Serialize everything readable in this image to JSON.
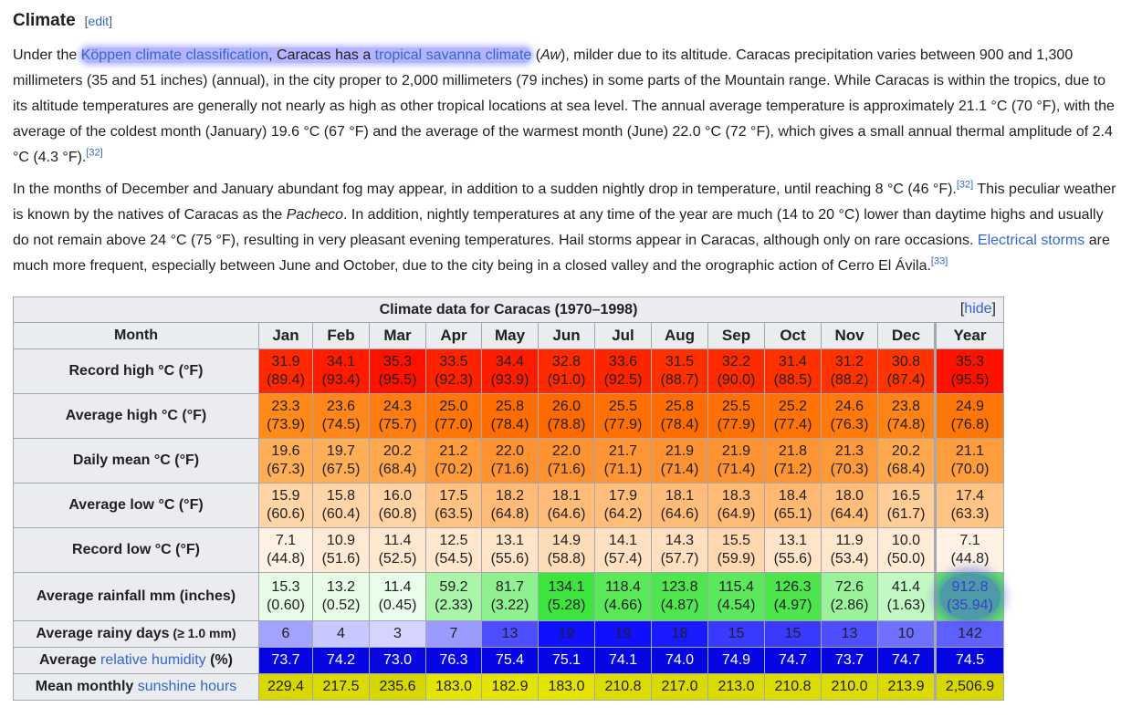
{
  "section": {
    "title": "Climate",
    "edit_open": "[",
    "edit_label": "edit",
    "edit_close": "]"
  },
  "para1": {
    "t1": "Under the ",
    "l1": "Köppen climate classification",
    "t2": ", Caracas has a ",
    "l2": "tropical savanna climate",
    "t3": " (",
    "i1": "Aw",
    "t4": "), milder due to its altitude. Caracas precipitation varies between 900 and 1,300 millimeters (35 and 51 inches) (annual), in the city proper to 2,000 millimeters (79 inches) in some parts of the Mountain range. While Caracas is within the tropics, due to its altitude temperatures are generally not nearly as high as other tropical locations at sea level. The annual average temperature is approximately 21.1 °C (70 °F), with the average of the coldest month (January) 19.6 °C (67 °F) and the average of the warmest month (June) 22.0 °C (72 °F), which gives a small annual thermal amplitude of 2.4 °C (4.3 °F).",
    "ref": "[32]"
  },
  "para2": {
    "t1": "In the months of December and January abundant fog may appear, in addition to a sudden nightly drop in temperature, until reaching 8 °C (46 °F).",
    "ref1": "[32]",
    "t2": " This peculiar weather is known by the natives of Caracas as the ",
    "i1": "Pacheco",
    "t3": ". In addition, nightly temperatures at any time of the year are much (14 to 20 °C) lower than daytime highs and usually do not remain above 24 °C (75 °F), resulting in very pleasant evening temperatures. Hail storms appear in Caracas, although only on rare occasions. ",
    "l1": "Electrical storms",
    "t4": " are much more frequent, especially between June and October, due to the city being in a closed valley and the orographic action of Cerro El Ávila.",
    "ref2": "[33]"
  },
  "table": {
    "caption": "Climate data for Caracas (1970–1998)",
    "hide_open": "[",
    "hide_label": "hide",
    "hide_close": "]",
    "month_header": "Month",
    "months": [
      "Jan",
      "Feb",
      "Mar",
      "Apr",
      "May",
      "Jun",
      "Jul",
      "Aug",
      "Sep",
      "Oct",
      "Nov",
      "Dec",
      "Year"
    ],
    "rows": [
      {
        "label": "Record high °C (°F)",
        "type": "two",
        "values": [
          [
            "31.9",
            "(89.4)"
          ],
          [
            "34.1",
            "(93.4)"
          ],
          [
            "35.3",
            "(95.5)"
          ],
          [
            "33.5",
            "(92.3)"
          ],
          [
            "34.4",
            "(93.9)"
          ],
          [
            "32.8",
            "(91.0)"
          ],
          [
            "33.6",
            "(92.5)"
          ],
          [
            "31.5",
            "(88.7)"
          ],
          [
            "32.2",
            "(90.0)"
          ],
          [
            "31.4",
            "(88.5)"
          ],
          [
            "31.2",
            "(88.2)"
          ],
          [
            "30.8",
            "(87.4)"
          ],
          [
            "35.3",
            "(95.5)"
          ]
        ],
        "colors": [
          "#ff2800",
          "#ff1a00",
          "#ff1100",
          "#ff2200",
          "#ff1c00",
          "#ff2a00",
          "#ff2400",
          "#ff3000",
          "#ff2b00",
          "#ff3100",
          "#ff3200",
          "#ff3400",
          "#ff1100"
        ]
      },
      {
        "label": "Average high °C (°F)",
        "type": "two",
        "values": [
          [
            "23.3",
            "(73.9)"
          ],
          [
            "23.6",
            "(74.5)"
          ],
          [
            "24.3",
            "(75.7)"
          ],
          [
            "25.0",
            "(77.0)"
          ],
          [
            "25.8",
            "(78.4)"
          ],
          [
            "26.0",
            "(78.8)"
          ],
          [
            "25.5",
            "(77.9)"
          ],
          [
            "25.8",
            "(78.4)"
          ],
          [
            "25.5",
            "(77.9)"
          ],
          [
            "25.2",
            "(77.4)"
          ],
          [
            "24.6",
            "(76.3)"
          ],
          [
            "23.8",
            "(74.8)"
          ],
          [
            "24.9",
            "(76.8)"
          ]
        ],
        "colors": [
          "#ff8a1a",
          "#ff861a",
          "#ff7d10",
          "#ff7508",
          "#ff6c00",
          "#ff6a00",
          "#ff7004",
          "#ff6c00",
          "#ff7004",
          "#ff7306",
          "#ff790c",
          "#ff8416",
          "#ff7608"
        ]
      },
      {
        "label": "Daily mean °C (°F)",
        "type": "two",
        "values": [
          [
            "19.6",
            "(67.3)"
          ],
          [
            "19.7",
            "(67.5)"
          ],
          [
            "20.2",
            "(68.4)"
          ],
          [
            "21.2",
            "(70.2)"
          ],
          [
            "22.0",
            "(71.6)"
          ],
          [
            "22.0",
            "(71.6)"
          ],
          [
            "21.7",
            "(71.1)"
          ],
          [
            "21.9",
            "(71.4)"
          ],
          [
            "21.9",
            "(71.4)"
          ],
          [
            "21.8",
            "(71.2)"
          ],
          [
            "21.3",
            "(70.3)"
          ],
          [
            "20.2",
            "(68.4)"
          ],
          [
            "21.1",
            "(70.0)"
          ]
        ],
        "colors": [
          "#ffae58",
          "#ffae58",
          "#ffa84e",
          "#ff9b3a",
          "#ff9230",
          "#ff9230",
          "#ff9534",
          "#ff9331",
          "#ff9331",
          "#ff9433",
          "#ff9a3a",
          "#ffa84e",
          "#ff9c3c"
        ]
      },
      {
        "label": "Average low °C (°F)",
        "type": "two",
        "values": [
          [
            "15.9",
            "(60.6)"
          ],
          [
            "15.8",
            "(60.4)"
          ],
          [
            "16.0",
            "(60.8)"
          ],
          [
            "17.5",
            "(63.5)"
          ],
          [
            "18.2",
            "(64.8)"
          ],
          [
            "18.1",
            "(64.6)"
          ],
          [
            "17.9",
            "(64.2)"
          ],
          [
            "18.1",
            "(64.6)"
          ],
          [
            "18.3",
            "(64.9)"
          ],
          [
            "18.4",
            "(65.1)"
          ],
          [
            "18.0",
            "(64.4)"
          ],
          [
            "16.5",
            "(61.7)"
          ],
          [
            "17.4",
            "(63.3)"
          ]
        ],
        "colors": [
          "#ffd4a6",
          "#ffd5a8",
          "#ffd3a4",
          "#ffc282",
          "#ffbb76",
          "#ffbc78",
          "#ffbe7c",
          "#ffbc78",
          "#ffba74",
          "#ffb972",
          "#ffbd7a",
          "#ffcd98",
          "#ffc384"
        ]
      },
      {
        "label": "Record low °C (°F)",
        "type": "two",
        "values": [
          [
            "7.1",
            "(44.8)"
          ],
          [
            "10.9",
            "(51.6)"
          ],
          [
            "11.4",
            "(52.5)"
          ],
          [
            "12.5",
            "(54.5)"
          ],
          [
            "13.1",
            "(55.6)"
          ],
          [
            "14.9",
            "(58.8)"
          ],
          [
            "14.1",
            "(57.4)"
          ],
          [
            "14.3",
            "(57.7)"
          ],
          [
            "15.5",
            "(59.9)"
          ],
          [
            "13.1",
            "(55.6)"
          ],
          [
            "11.9",
            "(53.4)"
          ],
          [
            "10.0",
            "(50.0)"
          ],
          [
            "7.1",
            "(44.8)"
          ]
        ],
        "colors": [
          "#fff2e4",
          "#ffe9d2",
          "#ffe8d0",
          "#ffe6cc",
          "#ffe4c8",
          "#ffdcb8",
          "#ffe0c0",
          "#ffdfbe",
          "#ffd8b0",
          "#ffe4c8",
          "#ffe7ce",
          "#ffebd6",
          "#fff2e4"
        ]
      },
      {
        "label": "Average rainfall mm (inches)",
        "type": "two",
        "values": [
          [
            "15.3",
            "(0.60)"
          ],
          [
            "13.2",
            "(0.52)"
          ],
          [
            "11.4",
            "(0.45)"
          ],
          [
            "59.2",
            "(2.33)"
          ],
          [
            "81.7",
            "(3.22)"
          ],
          [
            "134.1",
            "(5.28)"
          ],
          [
            "118.4",
            "(4.66)"
          ],
          [
            "123.8",
            "(4.87)"
          ],
          [
            "115.4",
            "(4.54)"
          ],
          [
            "126.3",
            "(4.97)"
          ],
          [
            "72.6",
            "(2.86)"
          ],
          [
            "41.4",
            "(1.63)"
          ],
          [
            "912.8",
            "(35.94)"
          ]
        ],
        "colors": [
          "#e6fce6",
          "#e8fde8",
          "#eafdea",
          "#aaf5aa",
          "#8ef08e",
          "#3ee43e",
          "#58e858",
          "#50e650",
          "#5ce85c",
          "#4ce64c",
          "#9af29a",
          "#c2f8c2",
          "#64e864"
        ]
      },
      {
        "label": "Average rainy days",
        "label_unit": "(≥ 1.0 mm)",
        "type": "one",
        "values": [
          "6",
          "4",
          "3",
          "7",
          "13",
          "19",
          "19",
          "18",
          "15",
          "15",
          "13",
          "10",
          "142"
        ],
        "colors": [
          "#a2a2ff",
          "#c8c8ff",
          "#d4d4ff",
          "#9a9aff",
          "#4e4eff",
          "#1010ff",
          "#1010ff",
          "#1a1aff",
          "#3a3aff",
          "#3a3aff",
          "#4e4eff",
          "#7070ff",
          "#6060ff"
        ]
      },
      {
        "label_pre": "Average ",
        "label_link": "relative humidity",
        "label_post": " (%)",
        "type": "one",
        "white_text": true,
        "values": [
          "73.7",
          "74.2",
          "73.0",
          "76.3",
          "75.4",
          "75.1",
          "74.1",
          "74.0",
          "74.9",
          "74.7",
          "73.7",
          "74.7",
          "74.5"
        ],
        "colors": [
          "#0606e0",
          "#0606e0",
          "#0707de",
          "#0505e6",
          "#0505e4",
          "#0505e3",
          "#0606e0",
          "#0606e0",
          "#0505e2",
          "#0505e2",
          "#0606e0",
          "#0505e2",
          "#0505e1"
        ]
      },
      {
        "label_pre": "Mean monthly ",
        "label_link": "sunshine hours",
        "label_post": "",
        "type": "one",
        "values": [
          "229.4",
          "217.5",
          "235.6",
          "183.0",
          "182.9",
          "183.0",
          "210.8",
          "217.0",
          "213.0",
          "210.8",
          "210.0",
          "213.9",
          "2,506.9"
        ],
        "colors": [
          "#d8d800",
          "#dada00",
          "#d6d600",
          "#e4e400",
          "#e4e400",
          "#e4e400",
          "#dcdc00",
          "#dada00",
          "#dbdb00",
          "#dcdc00",
          "#dcdc00",
          "#dbdb00",
          "#d8d800"
        ]
      }
    ]
  }
}
